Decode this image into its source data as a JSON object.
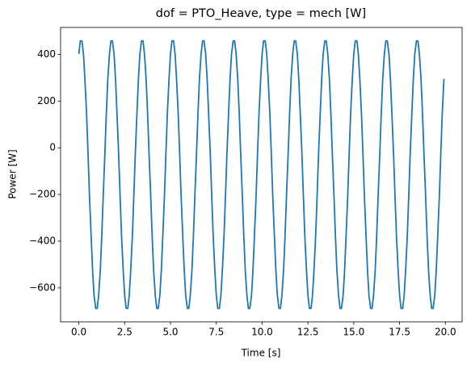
{
  "chart_data": {
    "type": "line",
    "title": "dof = PTO_Heave, type = mech [W]",
    "xlabel": "Time [s]",
    "ylabel": "Power [W]",
    "color": "#1f77b4",
    "xlim": [
      -0.996,
      20.912
    ],
    "ylim": [
      -745.3,
      515.3
    ],
    "xticks": [
      {
        "value": 0,
        "label": "0.0"
      },
      2.5,
      {
        "value": 5,
        "label": "5.0"
      },
      7.5,
      {
        "value": 10,
        "label": "10.0"
      },
      12.5,
      {
        "value": 15,
        "label": "15.0"
      },
      17.5,
      {
        "value": 20,
        "label": "20.0"
      }
    ],
    "yticks": [
      {
        "value": -600,
        "label": "−600"
      },
      {
        "value": -400,
        "label": "−400"
      },
      {
        "value": -200,
        "label": "−200"
      },
      0,
      200,
      400
    ],
    "x": [
      0,
      0.08,
      0.17,
      0.25,
      0.33,
      0.42,
      0.5,
      0.58,
      0.67,
      0.75,
      0.83,
      0.92,
      1,
      1.08,
      1.17,
      1.25,
      1.33,
      1.42,
      1.5,
      1.58,
      1.67,
      1.75,
      1.83,
      1.92,
      2,
      2.08,
      2.17,
      2.25,
      2.33,
      2.42,
      2.5,
      2.58,
      2.67,
      2.75,
      2.83,
      2.92,
      3,
      3.08,
      3.17,
      3.25,
      3.33,
      3.42,
      3.5,
      3.58,
      3.67,
      3.75,
      3.83,
      3.92,
      4,
      4.08,
      4.17,
      4.25,
      4.33,
      4.42,
      4.5,
      4.58,
      4.67,
      4.75,
      4.83,
      4.92,
      5,
      5.08,
      5.17,
      5.25,
      5.33,
      5.42,
      5.5,
      5.58,
      5.67,
      5.75,
      5.83,
      5.92,
      6,
      6.08,
      6.17,
      6.25,
      6.33,
      6.42,
      6.5,
      6.58,
      6.67,
      6.75,
      6.83,
      6.92,
      7,
      7.08,
      7.17,
      7.25,
      7.33,
      7.42,
      7.5,
      7.58,
      7.67,
      7.75,
      7.83,
      7.92,
      8,
      8.08,
      8.17,
      8.25,
      8.33,
      8.42,
      8.5,
      8.58,
      8.67,
      8.75,
      8.83,
      8.92,
      9,
      9.08,
      9.17,
      9.25,
      9.33,
      9.42,
      9.5,
      9.58,
      9.67,
      9.75,
      9.83,
      9.92,
      10,
      10.08,
      10.17,
      10.25,
      10.33,
      10.42,
      10.5,
      10.58,
      10.67,
      10.75,
      10.83,
      10.92,
      11,
      11.08,
      11.17,
      11.25,
      11.33,
      11.42,
      11.5,
      11.58,
      11.67,
      11.75,
      11.83,
      11.92,
      12,
      12.08,
      12.17,
      12.25,
      12.33,
      12.42,
      12.5,
      12.58,
      12.67,
      12.75,
      12.83,
      12.92,
      13,
      13.08,
      13.17,
      13.25,
      13.33,
      13.42,
      13.5,
      13.58,
      13.67,
      13.75,
      13.83,
      13.92,
      14,
      14.08,
      14.17,
      14.25,
      14.33,
      14.42,
      14.5,
      14.58,
      14.67,
      14.75,
      14.83,
      14.92,
      15,
      15.08,
      15.17,
      15.25,
      15.33,
      15.42,
      15.5,
      15.58,
      15.67,
      15.75,
      15.83,
      15.92,
      16,
      16.08,
      16.17,
      16.25,
      16.33,
      16.42,
      16.5,
      16.58,
      16.67,
      16.75,
      16.83,
      16.92,
      17,
      17.08,
      17.17,
      17.25,
      17.33,
      17.42,
      17.5,
      17.58,
      17.67,
      17.75,
      17.83,
      17.92,
      18,
      18.08,
      18.17,
      18.25,
      18.33,
      18.42,
      18.5,
      18.58,
      18.67,
      18.75,
      18.83,
      18.92,
      19,
      19.08,
      19.17,
      19.25,
      19.33,
      19.42,
      19.5,
      19.58,
      19.67,
      19.75,
      19.83,
      19.92
    ],
    "values": [
      402,
      458,
      458,
      402,
      295,
      148,
      -24,
      -206,
      -378,
      -525,
      -632,
      -688,
      -688,
      -632,
      -525,
      -378,
      -206,
      -24,
      148,
      295,
      402,
      458,
      458,
      402,
      295,
      148,
      -24,
      -206,
      -378,
      -525,
      -632,
      -688,
      -688,
      -632,
      -525,
      -378,
      -206,
      -24,
      148,
      295,
      402,
      458,
      458,
      402,
      295,
      148,
      -24,
      -206,
      -378,
      -525,
      -632,
      -688,
      -688,
      -632,
      -525,
      -378,
      -206,
      -24,
      148,
      295,
      402,
      458,
      458,
      402,
      295,
      148,
      -24,
      -206,
      -378,
      -525,
      -632,
      -688,
      -688,
      -632,
      -525,
      -378,
      -206,
      -24,
      148,
      295,
      402,
      458,
      458,
      402,
      295,
      148,
      -24,
      -206,
      -378,
      -525,
      -632,
      -688,
      -688,
      -632,
      -525,
      -378,
      -206,
      -24,
      148,
      295,
      402,
      458,
      458,
      402,
      295,
      148,
      -24,
      -206,
      -378,
      -525,
      -632,
      -688,
      -688,
      -632,
      -525,
      -378,
      -206,
      -24,
      148,
      295,
      402,
      458,
      458,
      402,
      295,
      148,
      -24,
      -206,
      -378,
      -525,
      -632,
      -688,
      -688,
      -632,
      -525,
      -378,
      -206,
      -24,
      148,
      295,
      402,
      458,
      458,
      402,
      295,
      148,
      -24,
      -206,
      -378,
      -525,
      -632,
      -688,
      -688,
      -632,
      -525,
      -378,
      -206,
      -24,
      148,
      295,
      402,
      458,
      458,
      402,
      295,
      148,
      -24,
      -206,
      -378,
      -525,
      -632,
      -688,
      -688,
      -632,
      -525,
      -378,
      -206,
      -24,
      148,
      295,
      402,
      458,
      458,
      402,
      295,
      148,
      -24,
      -206,
      -378,
      -525,
      -632,
      -688,
      -688,
      -632,
      -525,
      -378,
      -206,
      -24,
      148,
      295,
      402,
      458,
      458,
      402,
      295,
      148,
      -24,
      -206,
      -378,
      -525,
      -632,
      -688,
      -688,
      -632,
      -525,
      -378,
      -206,
      -24,
      148,
      295,
      402,
      458,
      458,
      402,
      295,
      148,
      -24,
      -206,
      -378,
      -525,
      -632,
      -688,
      -688,
      -632,
      -525,
      -378,
      -206,
      -24,
      148,
      295
    ]
  }
}
